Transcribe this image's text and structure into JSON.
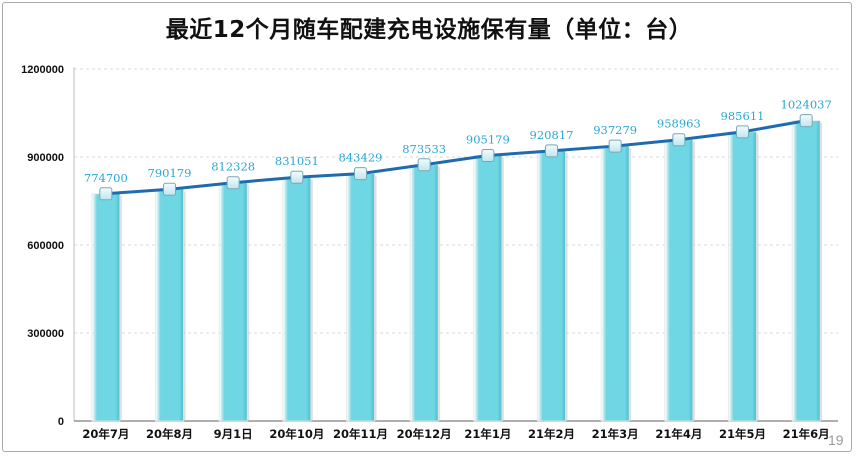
{
  "page": {
    "number": "19"
  },
  "colors": {
    "bar": "#6fd6e3",
    "line": "#1f6bb0",
    "label": "#2aa7d6",
    "marker": "#bfe6ee"
  },
  "chart_data": {
    "type": "bar",
    "title": "最近12个月随车配建充电设施保有量（单位：台）",
    "categories": [
      "20年7月",
      "20年8月",
      "9月1日",
      "20年10月",
      "20年11月",
      "20年12月",
      "21年1月",
      "21年2月",
      "21年3月",
      "21年4月",
      "21年5月",
      "21年6月"
    ],
    "values": [
      774700,
      790179,
      812328,
      831051,
      843429,
      873533,
      905179,
      920817,
      937279,
      958963,
      985611,
      1024037
    ],
    "value_labels": [
      "774700",
      "790179",
      "812328",
      "831051",
      "843429",
      "873533",
      "905179",
      "920817",
      "937279",
      "958963",
      "985611",
      "1024037"
    ],
    "overlay_line": true,
    "ylim": [
      0,
      1200000
    ],
    "yticks": [
      "0",
      "300000",
      "600000",
      "900000",
      "1200000"
    ],
    "xlabel": "",
    "ylabel": "",
    "grid": true
  }
}
